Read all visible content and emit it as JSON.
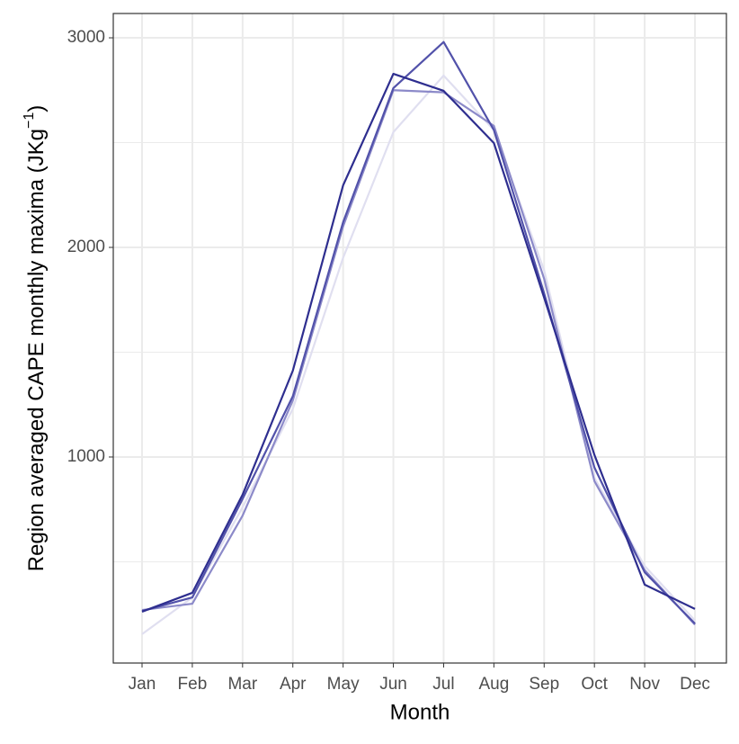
{
  "chart_data": {
    "type": "line",
    "xlabel": "Month",
    "ylabel": "Region averaged CAPE monthly maxima (JKg",
    "ylabel_sup": "−1",
    "ylabel_end": ")",
    "categories": [
      "Jan",
      "Feb",
      "Mar",
      "Apr",
      "May",
      "Jun",
      "Jul",
      "Aug",
      "Sep",
      "Oct",
      "Nov",
      "Dec"
    ],
    "series": [
      {
        "color": "#e0dff0",
        "values": [
          155,
          330,
          760,
          1230,
          1950,
          2550,
          2820,
          2560,
          1890,
          900,
          480,
          220
        ]
      },
      {
        "color": "#8c8ac9",
        "values": [
          270,
          300,
          720,
          1270,
          2100,
          2750,
          2740,
          2580,
          1850,
          885,
          460,
          200
        ]
      },
      {
        "color": "#5252aa",
        "values": [
          265,
          330,
          800,
          1290,
          2120,
          2760,
          2980,
          2560,
          1780,
          950,
          450,
          205
        ]
      },
      {
        "color": "#2e2e8f",
        "values": [
          262,
          352,
          820,
          1412,
          2296,
          2828,
          2747,
          2498,
          1760,
          1010,
          391,
          275
        ]
      }
    ],
    "ylim": [
      17,
      3116
    ],
    "yticks": [
      1000,
      2000,
      3000
    ],
    "y_minor_grid": [
      500,
      1500,
      2500
    ],
    "grid": true
  }
}
